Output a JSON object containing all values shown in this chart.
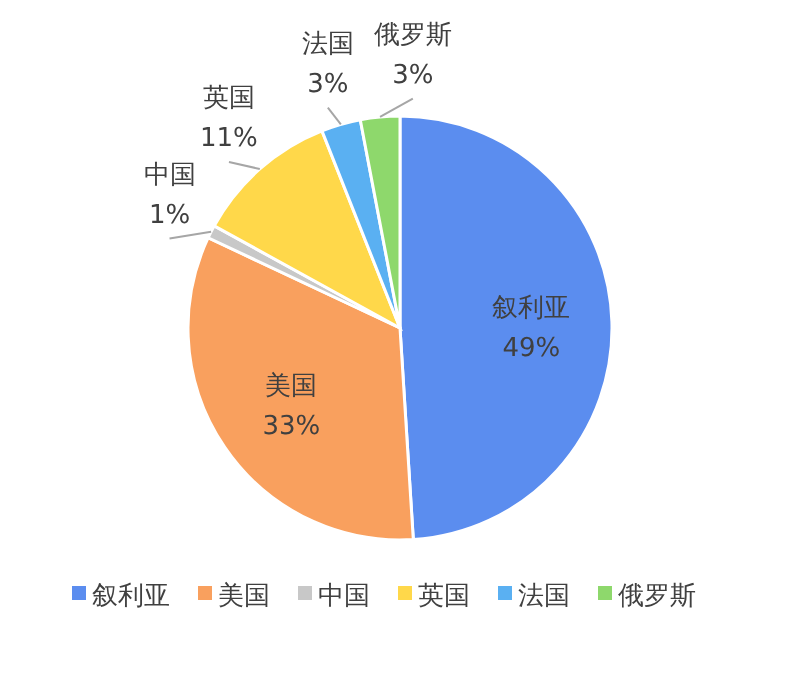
{
  "chart_data": {
    "type": "pie",
    "categories": [
      "叙利亚",
      "美国",
      "中国",
      "英国",
      "法国",
      "俄罗斯"
    ],
    "values": [
      49,
      33,
      1,
      11,
      3,
      3
    ],
    "colors": [
      "#5b8def",
      "#f9a05e",
      "#c8c8c8",
      "#ffd84a",
      "#5ab0f2",
      "#8ed86c"
    ],
    "value_labels": [
      "49%",
      "33%",
      "1%",
      "11%",
      "3%",
      "3%"
    ],
    "legend": "bottom"
  }
}
